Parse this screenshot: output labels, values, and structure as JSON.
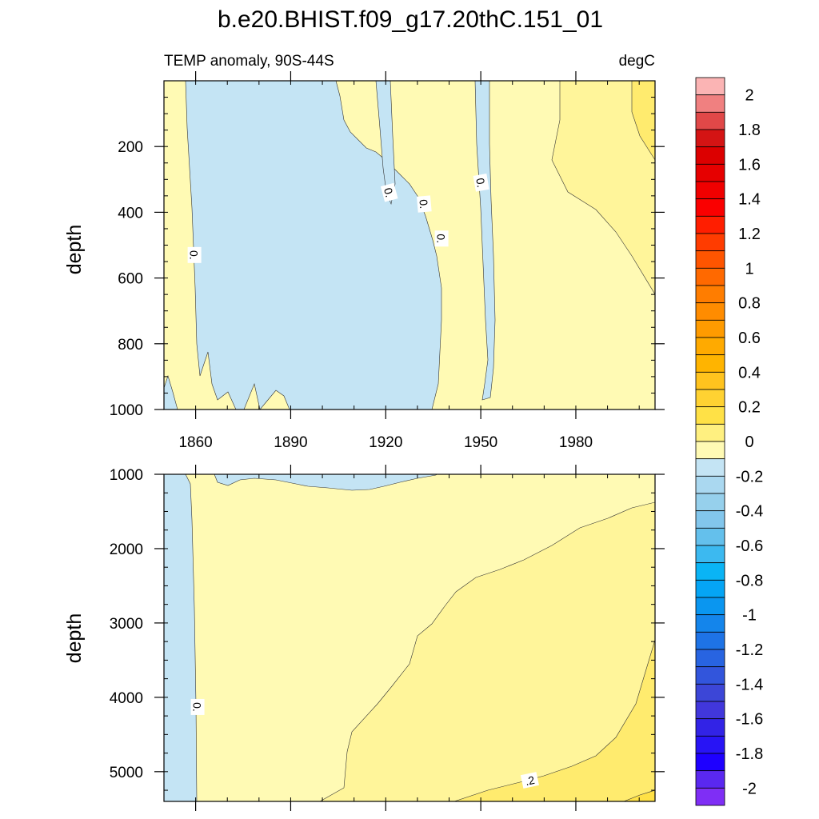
{
  "chart_data": {
    "type": "heatmap",
    "title": "b.e20.BHIST.f09_g17.20thC.151_01",
    "subtitle_left": "TEMP anomaly, 90S-44S",
    "subtitle_right": "degC",
    "x_axis": {
      "label": "",
      "range": [
        1850,
        2005
      ],
      "ticks": [
        {
          "value": 1860,
          "label": "1860"
        },
        {
          "value": 1890,
          "label": "1890"
        },
        {
          "value": 1920,
          "label": "1920"
        },
        {
          "value": 1950,
          "label": "1950"
        },
        {
          "value": 1980,
          "label": "1980"
        }
      ]
    },
    "panels": [
      {
        "id": "upper",
        "ylabel": "depth",
        "y_range": [
          0,
          1000
        ],
        "y_reversed": true,
        "y_ticks": [
          {
            "value": 200,
            "label": "200"
          },
          {
            "value": 400,
            "label": "400"
          },
          {
            "value": 600,
            "label": "600"
          },
          {
            "value": 800,
            "label": "800"
          },
          {
            "value": 1000,
            "label": "1000"
          }
        ],
        "contour_labels": [
          {
            "text": "0.",
            "year": 1859.5,
            "depth": 530,
            "rotate": 90
          },
          {
            "text": "0.",
            "year": 1921,
            "depth": 340,
            "rotate": 75
          },
          {
            "text": "0.",
            "year": 1932,
            "depth": 375,
            "rotate": 85
          },
          {
            "text": "0.",
            "year": 1937.5,
            "depth": 480,
            "rotate": 90
          },
          {
            "text": "0.",
            "year": 1950,
            "depth": 310,
            "rotate": 80
          }
        ]
      },
      {
        "id": "lower",
        "ylabel": "depth",
        "y_range": [
          1000,
          5400
        ],
        "y_reversed": true,
        "y_ticks": [
          {
            "value": 1000,
            "label": "1000"
          },
          {
            "value": 2000,
            "label": "2000"
          },
          {
            "value": 3000,
            "label": "3000"
          },
          {
            "value": 4000,
            "label": "4000"
          },
          {
            "value": 5000,
            "label": "5000"
          }
        ],
        "contour_labels": [
          {
            "text": "0.",
            "year": 1860.5,
            "depth": 4130,
            "rotate": 90
          },
          {
            "text": ".2",
            "year": 1965.5,
            "depth": 5120,
            "rotate": -12
          }
        ]
      }
    ],
    "colorbar": {
      "min": -2.1,
      "max": 2.1,
      "step": 0.1,
      "labels": [
        {
          "value": 2,
          "label": "2"
        },
        {
          "value": 1.8,
          "label": "1.8"
        },
        {
          "value": 1.6,
          "label": "1.6"
        },
        {
          "value": 1.4,
          "label": "1.4"
        },
        {
          "value": 1.2,
          "label": "1.2"
        },
        {
          "value": 1,
          "label": "1"
        },
        {
          "value": 0.8,
          "label": "0.8"
        },
        {
          "value": 0.6,
          "label": "0.6"
        },
        {
          "value": 0.4,
          "label": "0.4"
        },
        {
          "value": 0.2,
          "label": "0.2"
        },
        {
          "value": 0,
          "label": "0"
        },
        {
          "value": -0.2,
          "label": "-0.2"
        },
        {
          "value": -0.4,
          "label": "-0.4"
        },
        {
          "value": -0.6,
          "label": "-0.6"
        },
        {
          "value": -0.8,
          "label": "-0.8"
        },
        {
          "value": -1,
          "label": "-1"
        },
        {
          "value": -1.2,
          "label": "-1.2"
        },
        {
          "value": -1.4,
          "label": "-1.4"
        },
        {
          "value": -1.6,
          "label": "-1.6"
        },
        {
          "value": -1.8,
          "label": "-1.8"
        },
        {
          "value": -2,
          "label": "-2"
        }
      ],
      "colors_top_to_bottom": [
        "#fbb4b4",
        "#f08080",
        "#e04848",
        "#d41414",
        "#dc0000",
        "#e60000",
        "#f00000",
        "#fa0000",
        "#ff1e00",
        "#ff3c00",
        "#ff5500",
        "#ff6900",
        "#ff7d00",
        "#ff8c00",
        "#ff9b00",
        "#ffaa00",
        "#ffb400",
        "#ffc31e",
        "#ffd232",
        "#ffe146",
        "#fff080",
        "#fffab4",
        "#c4e4f4",
        "#aad8f0",
        "#96d0ec",
        "#82c6ec",
        "#64c0ec",
        "#3cb9f0",
        "#0ab4f5",
        "#05a5f5",
        "#0a96f0",
        "#1485eb",
        "#1e73e6",
        "#2864e1",
        "#3255dc",
        "#3c46d7",
        "#4137dc",
        "#3223e6",
        "#2814f5",
        "#1e00ff",
        "#5a28f0",
        "#7f2ef5"
      ]
    }
  }
}
